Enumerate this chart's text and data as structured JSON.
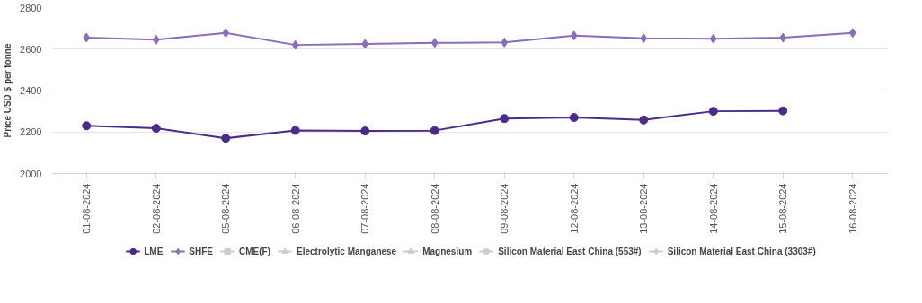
{
  "chart_data": {
    "type": "line",
    "ylabel": "Price USD $ per tonne",
    "categories": [
      "01-08-2024",
      "02-08-2024",
      "05-08-2024",
      "06-08-2024",
      "07-08-2024",
      "08-08-2024",
      "09-08-2024",
      "12-08-2024",
      "13-08-2024",
      "14-08-2024",
      "15-08-2024",
      "16-08-2024"
    ],
    "series": [
      {
        "name": "LME",
        "color": "#4b2a8c",
        "marker": "circle",
        "values": [
          2230,
          2218,
          2170,
          2208,
          2205,
          2207,
          2265,
          2270,
          2258,
          2300,
          2302,
          null
        ]
      },
      {
        "name": "SHFE",
        "color": "#8a6bbd",
        "marker": "diamond",
        "values": [
          2655,
          2645,
          2678,
          2620,
          2625,
          2630,
          2632,
          2665,
          2652,
          2650,
          2655,
          2678
        ]
      },
      {
        "name": "CME(F)",
        "color": "#cccccc",
        "marker": "square",
        "values": [
          null,
          null,
          null,
          null,
          null,
          null,
          null,
          null,
          null,
          null,
          null,
          null
        ]
      },
      {
        "name": "Electrolytic Manganese",
        "color": "#cccccc",
        "marker": "triangle",
        "values": [
          null,
          null,
          null,
          null,
          null,
          null,
          null,
          null,
          null,
          null,
          null,
          null
        ]
      },
      {
        "name": "Magnesium",
        "color": "#cccccc",
        "marker": "triangle",
        "values": [
          null,
          null,
          null,
          null,
          null,
          null,
          null,
          null,
          null,
          null,
          null,
          null
        ]
      },
      {
        "name": "Silicon Material East China (553#)",
        "color": "#cccccc",
        "marker": "circle",
        "values": [
          null,
          null,
          null,
          null,
          null,
          null,
          null,
          null,
          null,
          null,
          null,
          null
        ]
      },
      {
        "name": "Silicon Material East China (3303#)",
        "color": "#cccccc",
        "marker": "diamond",
        "values": [
          null,
          null,
          null,
          null,
          null,
          null,
          null,
          null,
          null,
          null,
          null,
          null
        ]
      }
    ],
    "ylim": [
      2000,
      2800
    ],
    "yticks": [
      2000,
      2200,
      2400,
      2600,
      2800
    ],
    "grid": "y",
    "legend": "bottom"
  }
}
